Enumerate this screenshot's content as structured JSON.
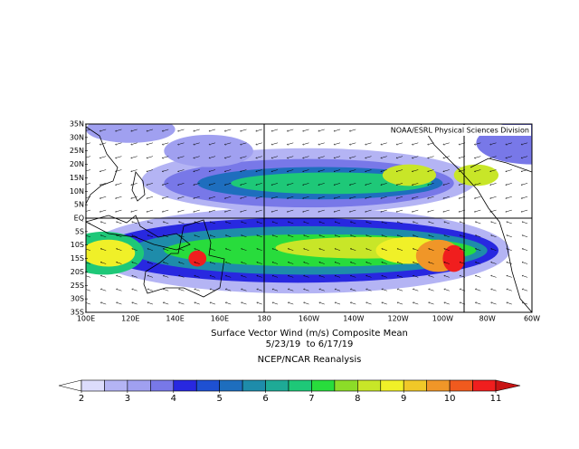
{
  "map": {
    "credit": "NOAA/ESRL Physical Sciences Division",
    "lat_labels": [
      "35N",
      "30N",
      "25N",
      "20N",
      "15N",
      "10N",
      "5N",
      "EQ",
      "5S",
      "10S",
      "15S",
      "20S",
      "25S",
      "30S",
      "35S"
    ],
    "lon_labels": [
      "100E",
      "120E",
      "140E",
      "160E",
      "180",
      "160W",
      "140W",
      "120W",
      "100W",
      "80W",
      "60W"
    ],
    "title": "Surface Vector Wind (m/s) Composite Mean",
    "dates": "5/23/19  to 6/17/19",
    "source": "NCEP/NCAR Reanalysis"
  },
  "colorbar": {
    "ticks": [
      2,
      3,
      4,
      5,
      6,
      7,
      8,
      9,
      10,
      11
    ],
    "colors": [
      "#dcdcfc",
      "#b4b4f4",
      "#a0a0f0",
      "#7878e8",
      "#2828e0",
      "#1e50d2",
      "#1e6ebe",
      "#1e8caa",
      "#1eaa96",
      "#1ec878",
      "#28dc3c",
      "#8cdc28",
      "#c8e628",
      "#f0f028",
      "#f0c828",
      "#f09628",
      "#f05a1e",
      "#f01e1e"
    ]
  }
}
